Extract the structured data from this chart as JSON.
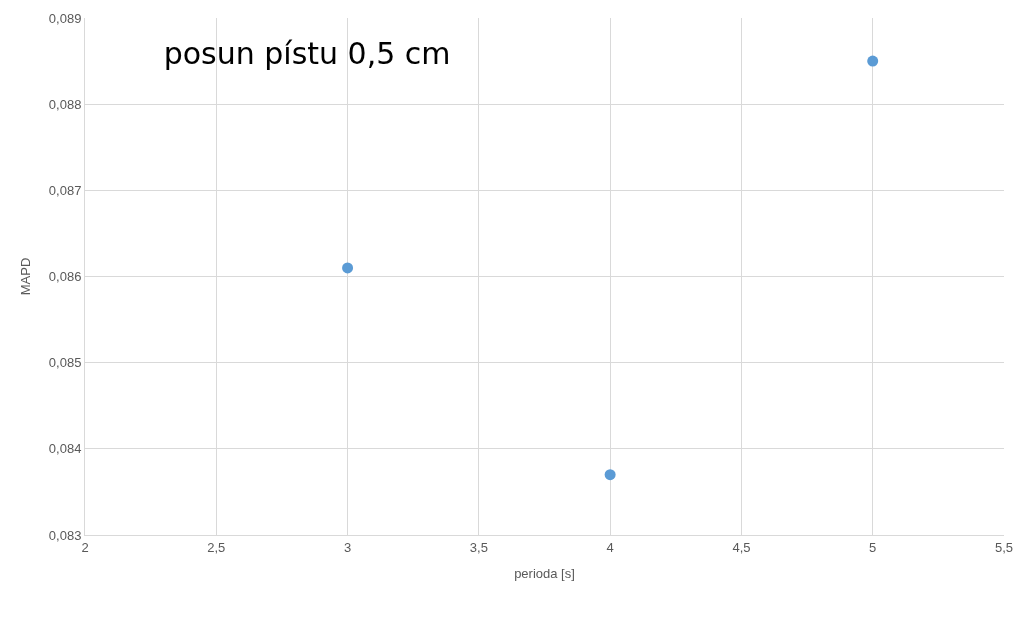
{
  "chart_data": {
    "type": "scatter",
    "title": "posun pístu 0,5 cm",
    "xlabel": "perioda [s]",
    "ylabel": "MAPD",
    "x": [
      3,
      4,
      5
    ],
    "series": [
      {
        "color": "#5b9bd5",
        "values": [
          0.0861,
          0.0837,
          0.0885
        ]
      }
    ],
    "xlim": [
      2,
      5.5
    ],
    "ylim": [
      0.083,
      0.089
    ],
    "xticks": [
      2,
      {
        "value": 2.5,
        "label": "2,5"
      },
      3,
      {
        "value": 3.5,
        "label": "3,5"
      },
      4,
      {
        "value": 4.5,
        "label": "4,5"
      },
      5,
      {
        "value": 5.5,
        "label": "5,5"
      }
    ],
    "yticks": [
      {
        "value": 0.083,
        "label": "0,083"
      },
      {
        "value": 0.084,
        "label": "0,084"
      },
      {
        "value": 0.085,
        "label": "0,085"
      },
      {
        "value": 0.086,
        "label": "0,086"
      },
      {
        "value": 0.087,
        "label": "0,087"
      },
      {
        "value": 0.088,
        "label": "0,088"
      },
      {
        "value": 0.089,
        "label": "0,089"
      }
    ],
    "grid": true,
    "marker": "circle",
    "legend": false
  }
}
